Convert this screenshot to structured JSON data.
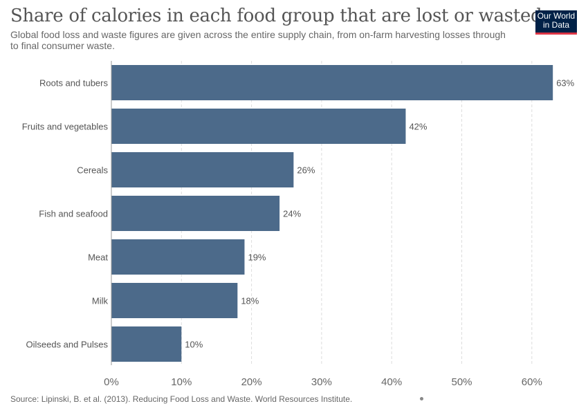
{
  "header": {
    "title": "Share of calories in each food group that are lost or wasted",
    "subtitle": "Global food loss and waste figures are given across the entire supply chain, from on-farm harvesting losses through to final consumer waste."
  },
  "logo": {
    "line1": "Our World",
    "line2": "in Data"
  },
  "footer": {
    "source": "Source: Lipinski, B. et al. (2013). Reducing Food Loss and Waste. World Resources Institute."
  },
  "colors": {
    "bar": "#4c6a8a",
    "grid": "#dddddd",
    "logo_bg": "#002147",
    "logo_accent": "#dc3545"
  },
  "chart_data": {
    "type": "bar",
    "orientation": "horizontal",
    "categories": [
      "Roots and tubers",
      "Fruits and vegetables",
      "Cereals",
      "Fish and seafood",
      "Meat",
      "Milk",
      "Oilseeds and Pulses"
    ],
    "values": [
      63,
      42,
      26,
      24,
      19,
      18,
      10
    ],
    "value_labels": [
      "63%",
      "42%",
      "26%",
      "24%",
      "19%",
      "18%",
      "10%"
    ],
    "xlim": [
      0,
      65
    ],
    "xticks": [
      0,
      10,
      20,
      30,
      40,
      50,
      60
    ],
    "xtick_labels": [
      "0%",
      "10%",
      "20%",
      "30%",
      "40%",
      "50%",
      "60%"
    ],
    "grid": "vertical dashed"
  }
}
